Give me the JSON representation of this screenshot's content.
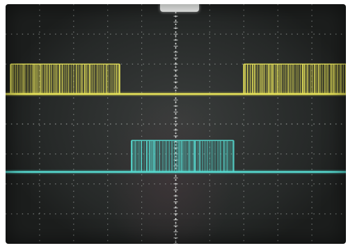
{
  "scope": {
    "grid_divisions": {
      "horizontal": 10,
      "vertical": 8
    },
    "minor_ticks_per_division": 5,
    "colors": {
      "background": "#262928",
      "grid": "#9a9e9c",
      "ch1": "#e6e25a",
      "ch2": "#56d9cf",
      "marker": "#f4f6f4"
    },
    "icons": [
      "trigger-position-marker"
    ],
    "channels": [
      {
        "id": "ch1",
        "baseline_div": 5.0,
        "high_div": 6.0,
        "bursts": [
          {
            "start_div": 0.15,
            "end_div": 3.35
          },
          {
            "start_div": 7.0,
            "end_div": 10.0
          }
        ]
      },
      {
        "id": "ch2",
        "baseline_div": 2.4,
        "high_div": 3.45,
        "bursts": [
          {
            "start_div": 3.7,
            "end_div": 6.7
          }
        ]
      }
    ]
  }
}
